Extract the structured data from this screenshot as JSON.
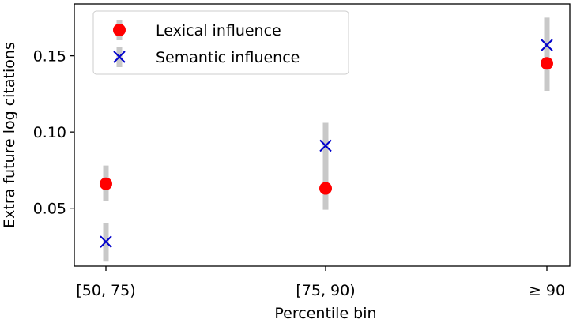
{
  "chart_data": {
    "type": "scatter",
    "categories": [
      "[50, 75)",
      "[75, 90)",
      "≥ 90"
    ],
    "xlabel": "Percentile bin",
    "ylabel": "Extra future log citations",
    "ylim": [
      0.012,
      0.184
    ],
    "yticks": [
      0.05,
      0.1,
      0.15
    ],
    "ytick_labels": [
      "0.05",
      "0.10",
      "0.15"
    ],
    "legend_position": "top-left",
    "grid": false,
    "series": [
      {
        "name": "Lexical influence",
        "marker": "circle",
        "color": "#ff0000",
        "values": [
          0.066,
          0.063,
          0.145
        ],
        "err_low": [
          0.055,
          0.049,
          0.127
        ],
        "err_high": [
          0.078,
          0.106,
          0.163
        ]
      },
      {
        "name": "Semantic influence",
        "marker": "x",
        "color": "#0000cc",
        "values": [
          0.028,
          0.091,
          0.157
        ],
        "err_low": [
          0.015,
          0.077,
          0.139
        ],
        "err_high": [
          0.04,
          0.106,
          0.175
        ]
      }
    ],
    "errorbar_color": "#c8c8c8"
  }
}
